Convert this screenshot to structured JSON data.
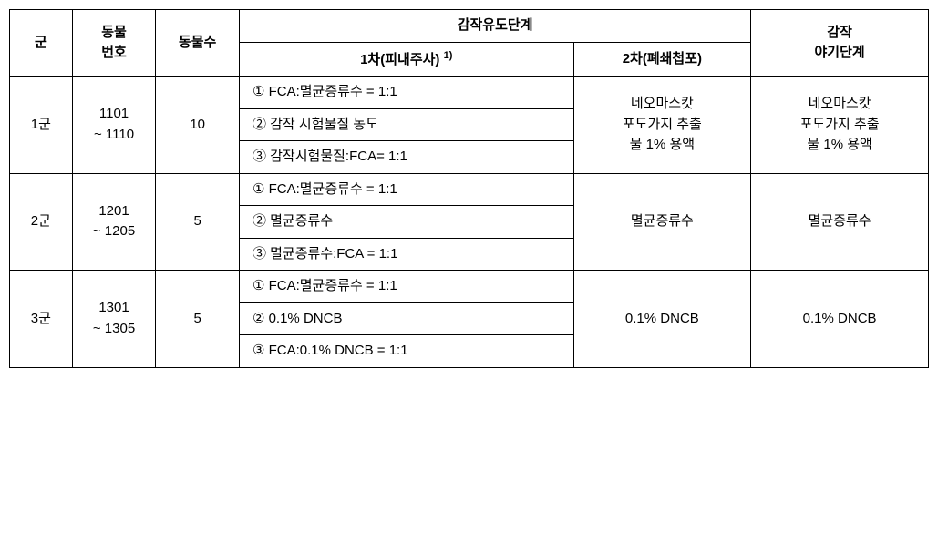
{
  "headers": {
    "group": "군",
    "animal_no": "동물\n번호",
    "animal_count": "동물수",
    "induction_phase": "감작유도단계",
    "phase1": "1차(피내주사)",
    "phase1_sup": "1)",
    "phase2": "2차(폐쇄첩포)",
    "challenge_phase": "감작\n야기단계"
  },
  "groups": [
    {
      "name": "1군",
      "animal_no": "1101\n~ 1110",
      "animal_count": "10",
      "phase1": [
        "① FCA:멸균증류수 = 1:1",
        "② 감작 시험물질 농도",
        "③ 감작시험물질:FCA= 1:1"
      ],
      "phase2": "네오마스캇\n포도가지 추출\n물 1% 용액",
      "challenge": "네오마스캇\n포도가지 추출\n물 1% 용액"
    },
    {
      "name": "2군",
      "animal_no": "1201\n~ 1205",
      "animal_count": "5",
      "phase1": [
        "① FCA:멸균증류수 = 1:1",
        "② 멸균증류수",
        "③ 멸균증류수:FCA = 1:1"
      ],
      "phase2": "멸균증류수",
      "challenge": "멸균증류수"
    },
    {
      "name": "3군",
      "animal_no": "1301\n~ 1305",
      "animal_count": "5",
      "phase1": [
        "① FCA:멸균증류수 = 1:1",
        "② 0.1% DNCB",
        "③ FCA:0.1% DNCB = 1:1"
      ],
      "phase2": "0.1% DNCB",
      "challenge": "0.1% DNCB"
    }
  ]
}
